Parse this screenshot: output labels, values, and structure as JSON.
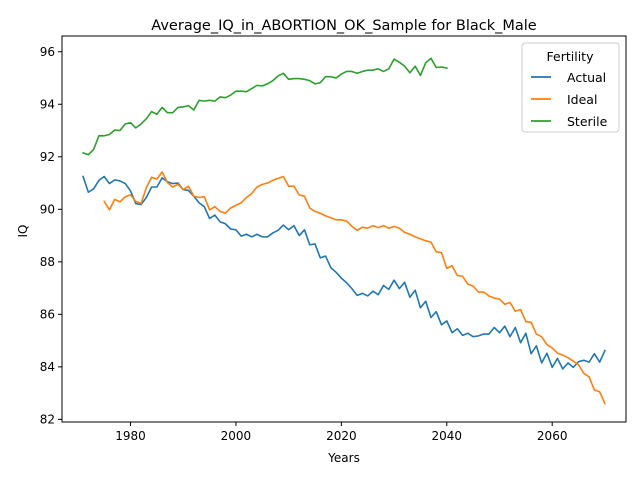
{
  "chart_data": {
    "type": "line",
    "title": "Average_IQ_in_ABORTION_OK_Sample for Black_Male",
    "xlabel": "Years",
    "ylabel": "IQ",
    "xlim": [
      1967,
      2074
    ],
    "ylim": [
      81.9,
      96.6
    ],
    "xticks": [
      1980,
      2000,
      2020,
      2040,
      2060
    ],
    "yticks": [
      82,
      84,
      86,
      88,
      90,
      92,
      94,
      96
    ],
    "grid": false,
    "legend": {
      "title": "Fertility",
      "placement": "top-right"
    },
    "series": [
      {
        "name": "Actual",
        "color": "#1f77b4",
        "x": [
          1971,
          1972,
          1973,
          1974,
          1975,
          1976,
          1977,
          1978,
          1979,
          1980,
          1981,
          1982,
          1983,
          1984,
          1985,
          1986,
          1987,
          1988,
          1989,
          1990,
          1991,
          1992,
          1993,
          1994,
          1995,
          1996,
          1997,
          1998,
          1999,
          2000,
          2001,
          2002,
          2003,
          2004,
          2005,
          2006,
          2007,
          2008,
          2009,
          2010,
          2011,
          2012,
          2013,
          2014,
          2015,
          2016,
          2017,
          2018,
          2019,
          2020,
          2021,
          2022,
          2023,
          2024,
          2025,
          2026,
          2027,
          2028,
          2029,
          2030,
          2031,
          2032,
          2033,
          2034,
          2035,
          2036,
          2037,
          2038,
          2039,
          2040,
          2041,
          2042,
          2043,
          2044,
          2045,
          2046,
          2047,
          2048,
          2049,
          2050,
          2051,
          2052,
          2053,
          2054,
          2055,
          2056,
          2057,
          2058,
          2059,
          2060,
          2061,
          2062,
          2063,
          2064,
          2065,
          2066,
          2067,
          2068,
          2069,
          2070
        ],
        "values": [
          91.25,
          90.65,
          90.78,
          91.1,
          91.25,
          90.98,
          91.12,
          91.08,
          90.98,
          90.7,
          90.22,
          90.18,
          90.45,
          90.85,
          90.85,
          91.2,
          91.05,
          90.98,
          91.0,
          90.75,
          90.72,
          90.5,
          90.25,
          90.1,
          89.65,
          89.78,
          89.52,
          89.45,
          89.25,
          89.22,
          88.98,
          89.05,
          88.95,
          89.05,
          88.95,
          88.95,
          89.1,
          89.2,
          89.4,
          89.22,
          89.38,
          89.0,
          89.22,
          88.65,
          88.68,
          88.15,
          88.22,
          87.78,
          87.6,
          87.38,
          87.2,
          86.98,
          86.72,
          86.8,
          86.7,
          86.88,
          86.75,
          87.1,
          86.95,
          87.3,
          86.98,
          87.22,
          86.65,
          86.92,
          86.25,
          86.5,
          85.88,
          86.1,
          85.6,
          85.75,
          85.3,
          85.45,
          85.2,
          85.28,
          85.15,
          85.18,
          85.25,
          85.25,
          85.5,
          85.3,
          85.55,
          85.15,
          85.5,
          84.92,
          85.28,
          84.5,
          84.8,
          84.15,
          84.52,
          83.98,
          84.32,
          83.92,
          84.15,
          83.98,
          84.2,
          84.25,
          84.18,
          84.5,
          84.18,
          84.62
        ]
      },
      {
        "name": "Ideal",
        "color": "#ff7f0e",
        "x": [
          1975,
          1976,
          1977,
          1978,
          1979,
          1980,
          1981,
          1982,
          1983,
          1984,
          1985,
          1986,
          1987,
          1988,
          1989,
          1990,
          1991,
          1992,
          1993,
          1994,
          1995,
          1996,
          1997,
          1998,
          1999,
          2000,
          2001,
          2002,
          2003,
          2004,
          2005,
          2006,
          2007,
          2008,
          2009,
          2010,
          2011,
          2012,
          2013,
          2014,
          2015,
          2016,
          2017,
          2018,
          2019,
          2020,
          2021,
          2022,
          2023,
          2024,
          2025,
          2026,
          2027,
          2028,
          2029,
          2030,
          2031,
          2032,
          2033,
          2034,
          2035,
          2036,
          2037,
          2038,
          2039,
          2040,
          2041,
          2042,
          2043,
          2044,
          2045,
          2046,
          2047,
          2048,
          2049,
          2050,
          2051,
          2052,
          2053,
          2054,
          2055,
          2056,
          2057,
          2058,
          2059,
          2060,
          2061,
          2062,
          2063,
          2064,
          2065,
          2066,
          2067,
          2068,
          2069,
          2070
        ],
        "values": [
          90.3,
          89.98,
          90.38,
          90.28,
          90.48,
          90.55,
          90.3,
          90.22,
          90.82,
          91.22,
          91.15,
          91.42,
          91.02,
          90.85,
          90.95,
          90.75,
          90.88,
          90.5,
          90.45,
          90.48,
          89.98,
          90.1,
          89.92,
          89.85,
          90.05,
          90.15,
          90.25,
          90.45,
          90.6,
          90.85,
          90.95,
          91.0,
          91.1,
          91.18,
          91.25,
          90.88,
          90.88,
          90.55,
          90.5,
          90.05,
          89.92,
          89.85,
          89.75,
          89.68,
          89.6,
          89.6,
          89.55,
          89.35,
          89.2,
          89.32,
          89.28,
          89.38,
          89.3,
          89.38,
          89.28,
          89.35,
          89.28,
          89.12,
          89.05,
          88.95,
          88.88,
          88.8,
          88.75,
          88.38,
          88.35,
          87.75,
          87.85,
          87.48,
          87.45,
          87.15,
          87.08,
          86.85,
          86.85,
          86.7,
          86.62,
          86.58,
          86.38,
          86.45,
          86.12,
          86.18,
          85.72,
          85.7,
          85.25,
          85.15,
          84.85,
          84.72,
          84.52,
          84.45,
          84.35,
          84.22,
          84.08,
          83.75,
          83.62,
          83.12,
          83.05,
          82.6
        ]
      },
      {
        "name": "Sterile",
        "color": "#2ca02c",
        "x": [
          1971,
          1972,
          1973,
          1974,
          1975,
          1976,
          1977,
          1978,
          1979,
          1980,
          1981,
          1982,
          1983,
          1984,
          1985,
          1986,
          1987,
          1988,
          1989,
          1990,
          1991,
          1992,
          1993,
          1994,
          1995,
          1996,
          1997,
          1998,
          1999,
          2000,
          2001,
          2002,
          2003,
          2004,
          2005,
          2006,
          2007,
          2008,
          2009,
          2010,
          2011,
          2012,
          2013,
          2014,
          2015,
          2016,
          2017,
          2018,
          2019,
          2020,
          2021,
          2022,
          2023,
          2024,
          2025,
          2026,
          2027,
          2028,
          2029,
          2030,
          2031,
          2032,
          2033,
          2034,
          2035,
          2036,
          2037,
          2038,
          2039,
          2040
        ],
        "values": [
          92.15,
          92.08,
          92.28,
          92.8,
          92.8,
          92.85,
          93.02,
          93.0,
          93.25,
          93.3,
          93.1,
          93.25,
          93.45,
          93.72,
          93.62,
          93.88,
          93.68,
          93.68,
          93.88,
          93.9,
          93.95,
          93.78,
          94.15,
          94.12,
          94.15,
          94.12,
          94.28,
          94.25,
          94.35,
          94.5,
          94.5,
          94.48,
          94.6,
          94.72,
          94.7,
          94.78,
          94.9,
          95.08,
          95.18,
          94.95,
          94.98,
          94.98,
          94.95,
          94.9,
          94.78,
          94.82,
          95.05,
          95.05,
          95.0,
          95.15,
          95.25,
          95.25,
          95.18,
          95.25,
          95.3,
          95.3,
          95.35,
          95.25,
          95.35,
          95.72,
          95.6,
          95.45,
          95.2,
          95.45,
          95.1,
          95.58,
          95.75,
          95.4,
          95.42,
          95.38
        ]
      }
    ]
  }
}
